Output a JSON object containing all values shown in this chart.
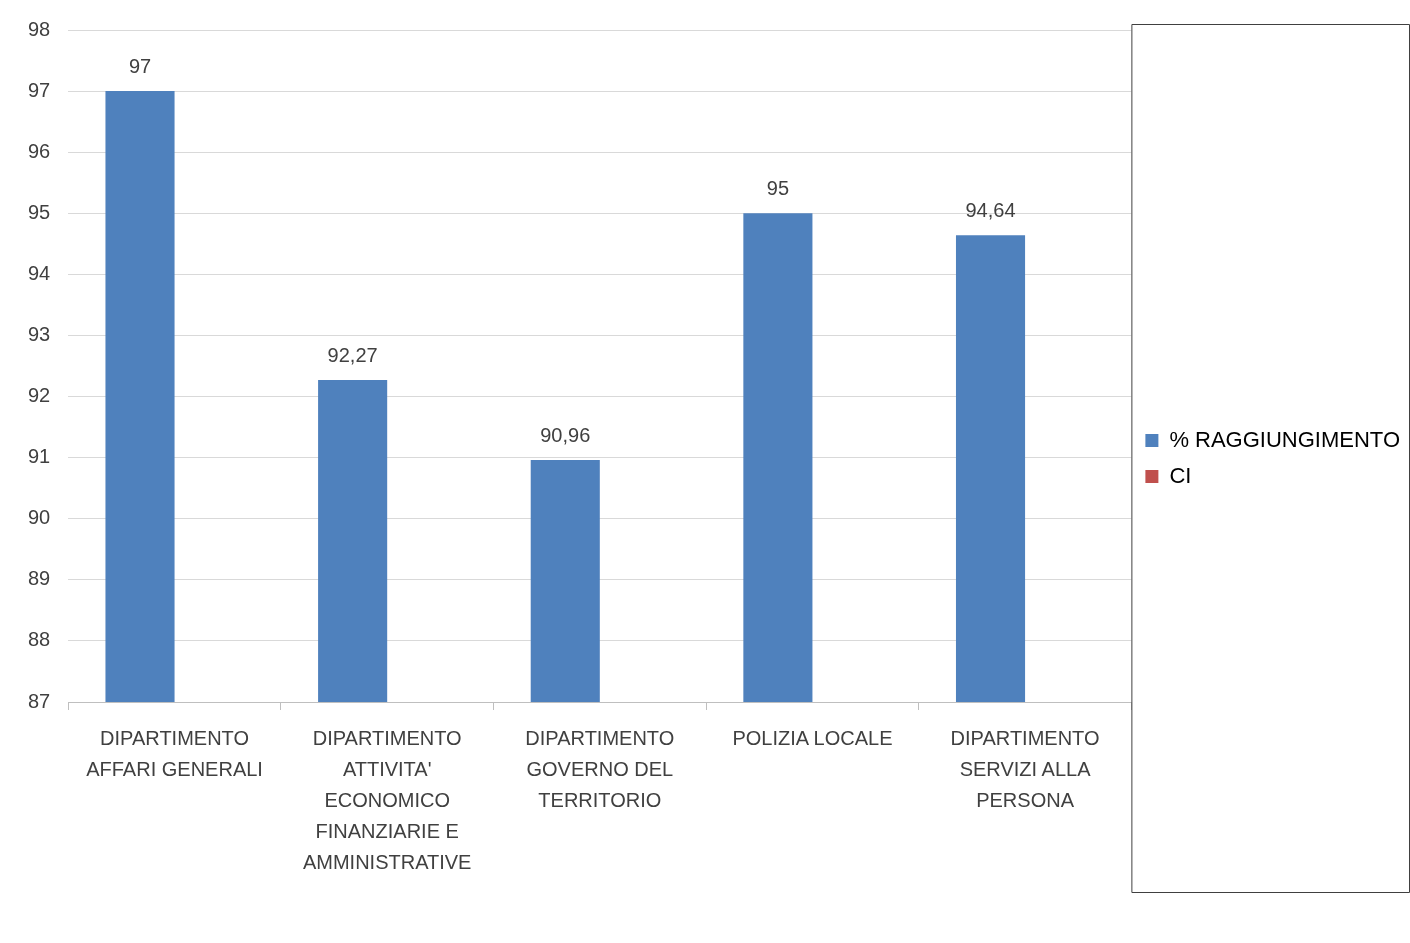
{
  "chart_data": {
    "type": "bar",
    "categories": [
      "DIPARTIMENTO AFFARI GENERALI",
      "DIPARTIMENTO ATTIVITA' ECONOMICO FINANZIARIE E AMMINISTRATIVE",
      "DIPARTIMENTO GOVERNO DEL TERRITORIO",
      "POLIZIA LOCALE",
      "DIPARTIMENTO SERVIZI ALLA PERSONA"
    ],
    "series": [
      {
        "name": "% RAGGIUNGIMENTO",
        "color": "#4f81bd",
        "values": [
          97,
          92.27,
          90.96,
          95,
          94.64
        ],
        "value_labels": [
          "97",
          "92,27",
          "90,96",
          "95",
          "94,64"
        ]
      },
      {
        "name": "CI",
        "color": "#c0504d",
        "values": [
          null,
          null,
          null,
          null,
          null
        ]
      }
    ],
    "ylim": [
      87,
      98
    ],
    "yticks": [
      87,
      88,
      89,
      90,
      91,
      92,
      93,
      94,
      95,
      96,
      97,
      98
    ],
    "grid": "y",
    "legend": "right"
  }
}
